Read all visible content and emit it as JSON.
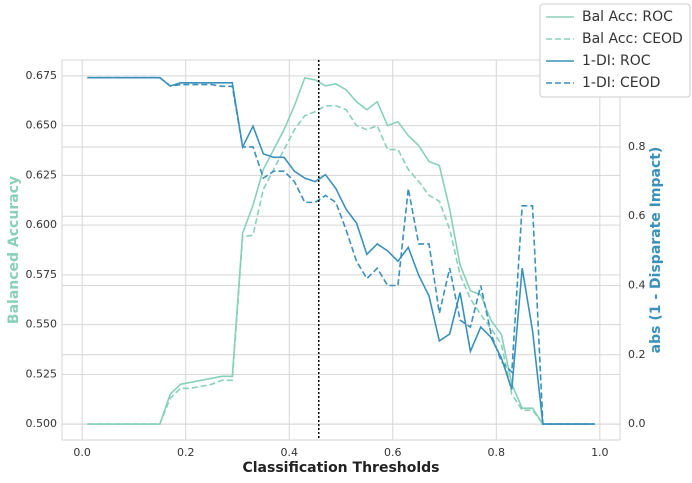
{
  "chart_data": {
    "type": "line",
    "xlabel": "Classification Thresholds",
    "ylabel": "Balanced Accuracy",
    "y2label": "abs (1 - Disparate Impact)",
    "ylabel_color": "#88d1b9",
    "y2label_color": "#3a91bb",
    "x": [
      0.01,
      0.03,
      0.05,
      0.07,
      0.09,
      0.11,
      0.13,
      0.15,
      0.17,
      0.19,
      0.21,
      0.23,
      0.25,
      0.27,
      0.29,
      0.31,
      0.33,
      0.35,
      0.37,
      0.39,
      0.41,
      0.43,
      0.45,
      0.47,
      0.49,
      0.51,
      0.53,
      0.55,
      0.57,
      0.59,
      0.61,
      0.63,
      0.65,
      0.67,
      0.69,
      0.71,
      0.73,
      0.75,
      0.77,
      0.79,
      0.81,
      0.83,
      0.85,
      0.87,
      0.89,
      0.91,
      0.93,
      0.95,
      0.97,
      0.99
    ],
    "series": [
      {
        "name": "Bal Acc: ROC",
        "color": "#88d1b9",
        "linestyle": "solid",
        "axis": "y",
        "values": [
          0.5,
          0.5,
          0.5,
          0.5,
          0.5,
          0.5,
          0.5,
          0.5,
          0.515,
          0.52,
          0.521,
          0.522,
          0.523,
          0.524,
          0.524,
          0.596,
          0.61,
          0.628,
          0.638,
          0.648,
          0.66,
          0.674,
          0.673,
          0.67,
          0.671,
          0.668,
          0.662,
          0.658,
          0.662,
          0.65,
          0.652,
          0.645,
          0.64,
          0.632,
          0.63,
          0.608,
          0.58,
          0.567,
          0.565,
          0.552,
          0.545,
          0.52,
          0.508,
          0.508,
          0.5,
          0.5,
          0.5,
          0.5,
          0.5,
          0.5
        ]
      },
      {
        "name": "Bal Acc: CEOD",
        "color": "#88d1b9",
        "linestyle": "dashed",
        "axis": "y",
        "values": [
          0.5,
          0.5,
          0.5,
          0.5,
          0.5,
          0.5,
          0.5,
          0.5,
          0.513,
          0.518,
          0.518,
          0.519,
          0.52,
          0.522,
          0.522,
          0.594,
          0.595,
          0.618,
          0.628,
          0.638,
          0.648,
          0.655,
          0.657,
          0.66,
          0.66,
          0.658,
          0.65,
          0.648,
          0.65,
          0.638,
          0.638,
          0.628,
          0.622,
          0.615,
          0.612,
          0.598,
          0.575,
          0.563,
          0.555,
          0.548,
          0.54,
          0.515,
          0.507,
          0.507,
          0.5,
          0.5,
          0.5,
          0.5,
          0.5,
          0.5
        ]
      },
      {
        "name": "1-DI: ROC",
        "color": "#3a91bb",
        "linestyle": "solid",
        "axis": "y2",
        "values": [
          1.0,
          1.0,
          1.0,
          1.0,
          1.0,
          1.0,
          1.0,
          1.0,
          0.976,
          0.985,
          0.985,
          0.985,
          0.985,
          0.985,
          0.985,
          0.8,
          0.86,
          0.78,
          0.77,
          0.77,
          0.73,
          0.71,
          0.7,
          0.72,
          0.68,
          0.62,
          0.58,
          0.49,
          0.52,
          0.5,
          0.47,
          0.51,
          0.43,
          0.37,
          0.24,
          0.26,
          0.38,
          0.21,
          0.28,
          0.25,
          0.19,
          0.1,
          0.45,
          0.27,
          0,
          0,
          0,
          0,
          0,
          0
        ]
      },
      {
        "name": "1-DI: CEOD",
        "color": "#3a91bb",
        "linestyle": "dashed",
        "axis": "y2",
        "values": [
          1.0,
          1.0,
          1.0,
          1.0,
          1.0,
          1.0,
          1.0,
          1.0,
          0.976,
          0.98,
          0.98,
          0.98,
          0.98,
          0.975,
          0.975,
          0.8,
          0.8,
          0.71,
          0.73,
          0.73,
          0.7,
          0.64,
          0.64,
          0.66,
          0.64,
          0.56,
          0.47,
          0.42,
          0.45,
          0.4,
          0.4,
          0.68,
          0.52,
          0.52,
          0.32,
          0.45,
          0.3,
          0.28,
          0.4,
          0.26,
          0.18,
          0.15,
          0.63,
          0.63,
          0,
          0,
          0,
          0,
          0,
          0
        ]
      }
    ],
    "vline": 0.457,
    "xlim": [
      -0.039,
      1.039
    ],
    "xticks": [
      {
        "value": 0,
        "label": "0.0"
      },
      0.2,
      0.4,
      0.6,
      0.8,
      {
        "value": 1,
        "label": "1.0"
      }
    ],
    "ylim": [
      0.492,
      0.683
    ],
    "yticks": [
      {
        "value": 0.5,
        "label": "0.500"
      },
      0.525,
      {
        "value": 0.55,
        "label": "0.550"
      },
      0.575,
      {
        "value": 0.6,
        "label": "0.600"
      },
      0.625,
      {
        "value": 0.65,
        "label": "0.650"
      },
      0.675
    ],
    "y2lim": [
      -0.046,
      1.051
    ],
    "y2ticks": [
      {
        "value": 0,
        "label": "0.0"
      },
      0.2,
      0.4,
      0.6,
      0.8
    ],
    "grid": true,
    "legend": "upper right"
  }
}
